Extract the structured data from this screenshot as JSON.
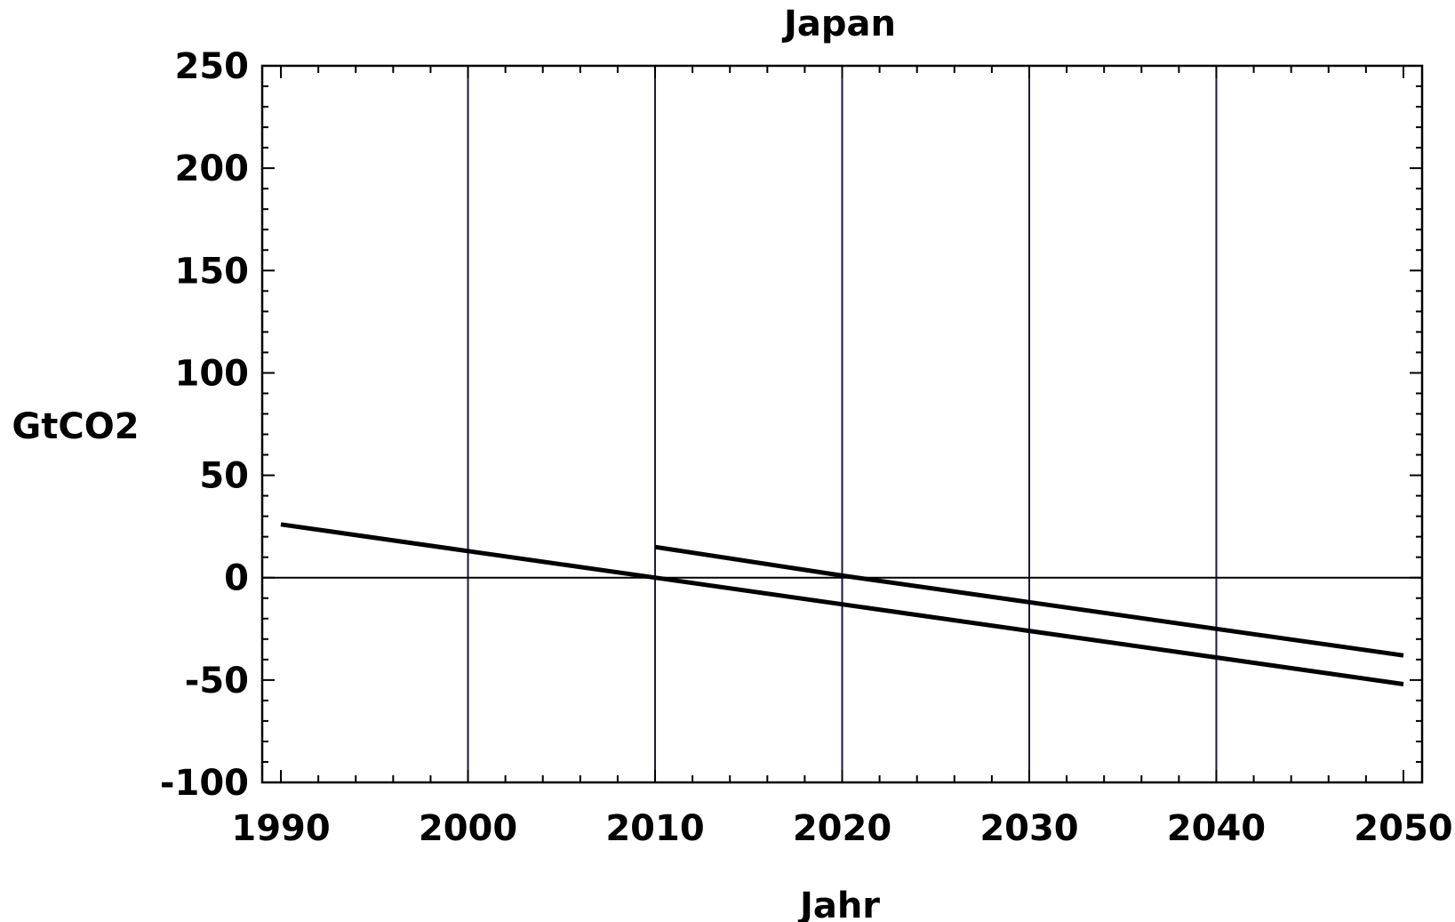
{
  "chart_data": {
    "type": "line",
    "title": "Japan",
    "xlabel": "Jahr",
    "ylabel": "GtCO2",
    "xlim": [
      1989,
      2051
    ],
    "ylim": [
      -100,
      250
    ],
    "x_ticks": [
      1990,
      2000,
      2010,
      2020,
      2030,
      2040,
      2050
    ],
    "y_ticks": [
      250,
      200,
      150,
      100,
      50,
      0,
      -50,
      -100
    ],
    "grid": {
      "vertical": [
        2000,
        2010,
        2020,
        2030,
        2040
      ],
      "horizontal": [
        0
      ]
    },
    "series": [
      {
        "x": [
          1990,
          2000,
          2010,
          2020,
          2030,
          2040,
          2050
        ],
        "values": [
          26,
          13,
          0,
          -13,
          -26,
          -39,
          -52
        ]
      },
      {
        "x": [
          2010,
          2020,
          2030,
          2040,
          2050
        ],
        "values": [
          15,
          1,
          -12,
          -25,
          -38
        ]
      }
    ],
    "colors": {
      "line": "#000000",
      "grid": "#1a1a3a",
      "axis": "#000000",
      "background": "#ffffff"
    }
  }
}
